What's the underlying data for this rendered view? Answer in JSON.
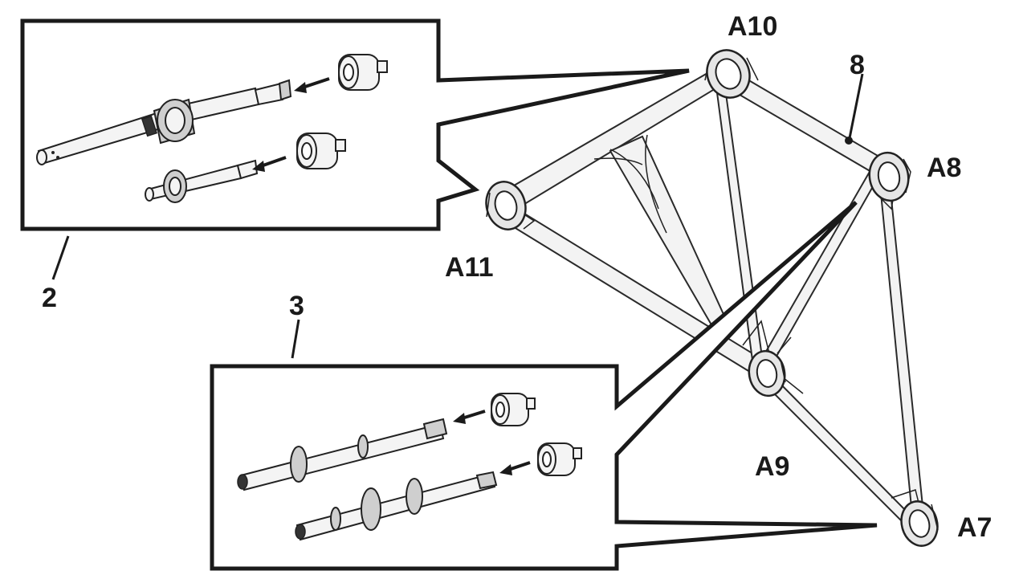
{
  "labels": {
    "callout_2": "2",
    "callout_3": "3",
    "callout_8": "8",
    "node_a7": "A7",
    "node_a8": "A8",
    "node_a9": "A9",
    "node_a10": "A10",
    "node_a11": "A11"
  }
}
